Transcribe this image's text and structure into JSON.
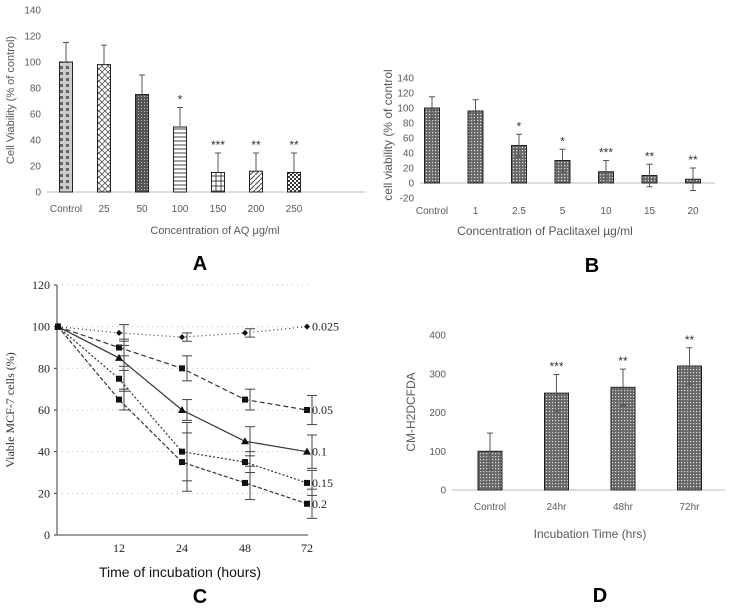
{
  "chart_data": [
    {
      "panel": "A",
      "type": "bar",
      "categories": [
        "Control",
        "25",
        "50",
        "100",
        "150",
        "200",
        "250"
      ],
      "values": [
        100,
        98,
        75,
        50,
        15,
        16,
        15
      ],
      "errors": [
        15,
        15,
        15,
        15,
        15,
        14,
        15
      ],
      "significance": [
        "",
        "",
        "",
        "*",
        "***",
        "**",
        "**"
      ],
      "xlabel": "Concentration of AQ µg/ml",
      "ylabel": "Cell Viability (% of control)",
      "ylim": [
        0,
        140
      ],
      "yticks": [
        0,
        20,
        40,
        60,
        80,
        100,
        120,
        140
      ],
      "label": "A"
    },
    {
      "panel": "B",
      "type": "bar",
      "categories": [
        "Control",
        "1",
        "2.5",
        "5",
        "10",
        "15",
        "20"
      ],
      "values": [
        100,
        96,
        50,
        30,
        15,
        10,
        5
      ],
      "errors": [
        15,
        15,
        15,
        15,
        15,
        15,
        15
      ],
      "significance": [
        "",
        "",
        "*",
        "*",
        "***",
        "**",
        "**"
      ],
      "xlabel": "Concentration of Paclitaxel µg/ml",
      "ylabel": "cell viability (% of control",
      "ylim": [
        -20,
        140
      ],
      "yticks": [
        -20,
        0,
        20,
        40,
        60,
        80,
        100,
        120,
        140
      ],
      "label": "B"
    },
    {
      "panel": "C",
      "type": "line",
      "x": [
        0,
        12,
        24,
        48,
        72
      ],
      "xticks": [
        "12",
        "24",
        "48",
        "72"
      ],
      "series": [
        {
          "name": "0.025",
          "values": [
            100,
            97,
            95,
            97,
            100
          ],
          "errors": [
            0,
            4,
            2,
            2,
            0
          ],
          "marker": "diamond",
          "dash": "1,3"
        },
        {
          "name": "0.05",
          "values": [
            100,
            90,
            80,
            65,
            60
          ],
          "errors": [
            0,
            4,
            6,
            5,
            7
          ],
          "marker": "square",
          "dash": "5,3"
        },
        {
          "name": "0.1",
          "values": [
            100,
            85,
            60,
            45,
            40
          ],
          "errors": [
            0,
            6,
            5,
            7,
            8
          ],
          "marker": "triangle",
          "dash": ""
        },
        {
          "name": "0.15",
          "values": [
            100,
            75,
            40,
            35,
            25
          ],
          "errors": [
            0,
            6,
            14,
            5,
            6
          ],
          "marker": "square",
          "dash": "2,2"
        },
        {
          "name": "0.2",
          "values": [
            100,
            65,
            35,
            25,
            15
          ],
          "errors": [
            0,
            5,
            14,
            8,
            7
          ],
          "marker": "square",
          "dash": "4,2"
        }
      ],
      "xlabel": "Time of incubation (hours)",
      "ylabel": "Viable MCF-7 cells (%)",
      "ylim": [
        0,
        120
      ],
      "yticks": [
        0,
        20,
        40,
        60,
        80,
        100,
        120
      ],
      "grid": true,
      "label": "C"
    },
    {
      "panel": "D",
      "type": "bar",
      "categories": [
        "Control",
        "24hr",
        "48hr",
        "72hr"
      ],
      "values": [
        100,
        250,
        265,
        320
      ],
      "errors": [
        47,
        48,
        47,
        47
      ],
      "significance": [
        "",
        "***",
        "**",
        "**"
      ],
      "xlabel": "Incubation Time (hrs)",
      "ylabel": "CM-H2DCFDA",
      "ylim": [
        0,
        400
      ],
      "yticks": [
        0,
        100,
        200,
        300,
        400
      ],
      "label": "D"
    }
  ]
}
